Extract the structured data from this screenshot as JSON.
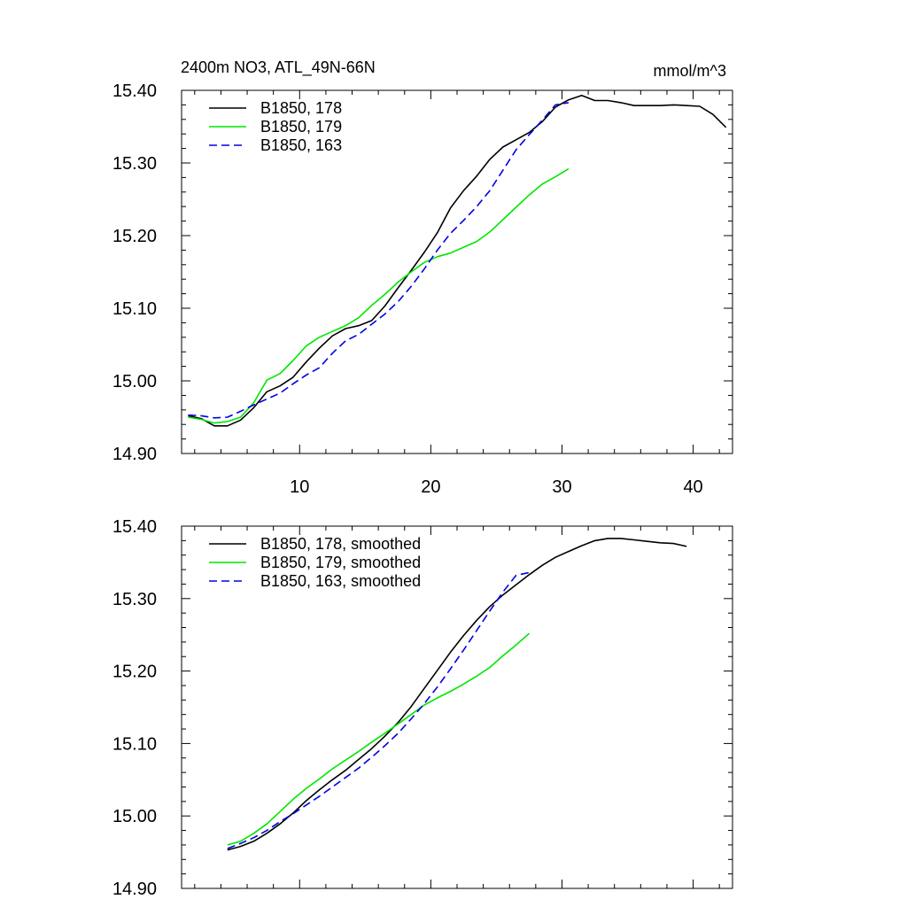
{
  "chart_data": [
    {
      "type": "line",
      "title": "2400m NO3, ATL_49N-66N",
      "units": "mmol/m^3",
      "xlim": [
        1,
        43
      ],
      "ylim": [
        14.9,
        15.4
      ],
      "x_ticks": [
        10,
        20,
        30,
        40
      ],
      "x_tick_labels": [
        "10",
        "20",
        "30",
        "40"
      ],
      "y_ticks": [
        14.9,
        15.0,
        15.1,
        15.2,
        15.3,
        15.4
      ],
      "y_tick_labels": [
        "14.90",
        "15.00",
        "15.10",
        "15.20",
        "15.30",
        "15.40"
      ],
      "legend_position": "top-left",
      "series": [
        {
          "name": "B1850, 178",
          "color": "#000000",
          "dash": "solid",
          "x": [
            1.5,
            2.5,
            3.5,
            4.5,
            5.5,
            6.5,
            7.5,
            8.5,
            9.5,
            10.5,
            11.5,
            12.5,
            13.5,
            14.5,
            15.5,
            16.5,
            17.5,
            18.5,
            19.5,
            20.5,
            21.5,
            22.5,
            23.5,
            24.5,
            25.5,
            26.5,
            27.5,
            28.5,
            29.5,
            30.5,
            31.5,
            32.5,
            33.5,
            34.5,
            35.5,
            36.5,
            37.5,
            38.5,
            39.5,
            40.5,
            41.5,
            42.5
          ],
          "y": [
            14.952,
            14.948,
            14.938,
            14.938,
            14.946,
            14.963,
            14.985,
            14.993,
            15.005,
            15.026,
            15.045,
            15.062,
            15.072,
            15.076,
            15.083,
            15.103,
            15.128,
            15.152,
            15.177,
            15.204,
            15.238,
            15.262,
            15.282,
            15.305,
            15.322,
            15.332,
            15.342,
            15.357,
            15.377,
            15.387,
            15.393,
            15.386,
            15.386,
            15.383,
            15.379,
            15.379,
            15.379,
            15.38,
            15.379,
            15.378,
            15.367,
            15.349
          ]
        },
        {
          "name": "B1850, 179",
          "color": "#00e600",
          "dash": "solid",
          "x": [
            1.5,
            2.5,
            3.5,
            4.5,
            5.5,
            6.5,
            7.5,
            8.5,
            9.5,
            10.5,
            11.5,
            12.5,
            13.5,
            14.5,
            15.5,
            16.5,
            17.5,
            18.5,
            19.5,
            20.5,
            21.5,
            22.5,
            23.5,
            24.5,
            25.5,
            26.5,
            27.5,
            28.5,
            29.5,
            30.5
          ],
          "y": [
            14.95,
            14.947,
            14.942,
            14.944,
            14.95,
            14.97,
            15.001,
            15.01,
            15.028,
            15.048,
            15.06,
            15.068,
            15.076,
            15.087,
            15.104,
            15.119,
            15.136,
            15.15,
            15.163,
            15.171,
            15.176,
            15.184,
            15.192,
            15.205,
            15.222,
            15.239,
            15.256,
            15.271,
            15.281,
            15.292
          ]
        },
        {
          "name": "B1850, 163",
          "color": "#0000e6",
          "dash": "dashed",
          "x": [
            1.5,
            2.5,
            3.5,
            4.5,
            5.5,
            6.5,
            7.5,
            8.5,
            9.5,
            10.5,
            11.5,
            12.5,
            13.5,
            14.5,
            15.5,
            16.5,
            17.5,
            18.5,
            19.5,
            20.5,
            21.5,
            22.5,
            23.5,
            24.5,
            25.5,
            26.5,
            27.5,
            28.5,
            29.5,
            30.5
          ],
          "y": [
            14.953,
            14.952,
            14.949,
            14.95,
            14.958,
            14.967,
            14.975,
            14.983,
            14.996,
            15.008,
            15.018,
            15.038,
            15.055,
            15.064,
            15.078,
            15.092,
            15.109,
            15.13,
            15.154,
            15.18,
            15.203,
            15.221,
            15.24,
            15.262,
            15.29,
            15.318,
            15.339,
            15.359,
            15.38,
            15.383
          ]
        }
      ]
    },
    {
      "type": "line",
      "xlim": [
        1,
        43
      ],
      "ylim": [
        14.9,
        15.4
      ],
      "x_ticks": [
        10,
        20,
        30,
        40
      ],
      "y_ticks": [
        14.9,
        15.0,
        15.1,
        15.2,
        15.3,
        15.4
      ],
      "y_tick_labels": [
        "14.90",
        "15.00",
        "15.10",
        "15.20",
        "15.30",
        "15.40"
      ],
      "legend_position": "top-left",
      "series": [
        {
          "name": "B1850, 178, smoothed",
          "color": "#000000",
          "dash": "solid",
          "x": [
            4.5,
            5.5,
            6.5,
            7.5,
            8.5,
            9.5,
            10.5,
            11.5,
            12.5,
            13.5,
            14.5,
            15.5,
            16.5,
            17.5,
            18.5,
            19.5,
            20.5,
            21.5,
            22.5,
            23.5,
            24.5,
            25.5,
            26.5,
            27.5,
            28.5,
            29.5,
            30.5,
            31.5,
            32.5,
            33.5,
            34.5,
            35.5,
            36.5,
            37.5,
            38.5,
            39.5
          ],
          "y": [
            14.953,
            14.958,
            14.965,
            14.976,
            14.989,
            15.004,
            15.021,
            15.036,
            15.05,
            15.063,
            15.078,
            15.093,
            15.11,
            15.129,
            15.151,
            15.176,
            15.201,
            15.226,
            15.249,
            15.27,
            15.289,
            15.305,
            15.319,
            15.333,
            15.346,
            15.357,
            15.365,
            15.373,
            15.38,
            15.383,
            15.383,
            15.381,
            15.379,
            15.377,
            15.376,
            15.372
          ]
        },
        {
          "name": "B1850, 179, smoothed",
          "color": "#00e600",
          "dash": "solid",
          "x": [
            4.5,
            5.5,
            6.5,
            7.5,
            8.5,
            9.5,
            10.5,
            11.5,
            12.5,
            13.5,
            14.5,
            15.5,
            16.5,
            17.5,
            18.5,
            19.5,
            20.5,
            21.5,
            22.5,
            23.5,
            24.5,
            25.5,
            26.5,
            27.5
          ],
          "y": [
            14.96,
            14.965,
            14.976,
            14.989,
            15.006,
            15.023,
            15.038,
            15.051,
            15.065,
            15.077,
            15.089,
            15.102,
            15.114,
            15.127,
            15.14,
            15.153,
            15.163,
            15.172,
            15.182,
            15.193,
            15.205,
            15.221,
            15.236,
            15.252
          ]
        },
        {
          "name": "B1850, 163, smoothed",
          "color": "#0000e6",
          "dash": "dashed",
          "x": [
            4.5,
            5.5,
            6.5,
            7.5,
            8.5,
            9.5,
            10.5,
            11.5,
            12.5,
            13.5,
            14.5,
            15.5,
            16.5,
            17.5,
            18.5,
            19.5,
            20.5,
            21.5,
            22.5,
            23.5,
            24.5,
            25.5,
            26.5,
            27.5
          ],
          "y": [
            14.955,
            14.962,
            14.97,
            14.98,
            14.992,
            15.003,
            15.015,
            15.027,
            15.04,
            15.053,
            15.066,
            15.081,
            15.097,
            15.114,
            15.134,
            15.155,
            15.178,
            15.203,
            15.229,
            15.256,
            15.283,
            15.309,
            15.332,
            15.336
          ]
        }
      ]
    }
  ]
}
